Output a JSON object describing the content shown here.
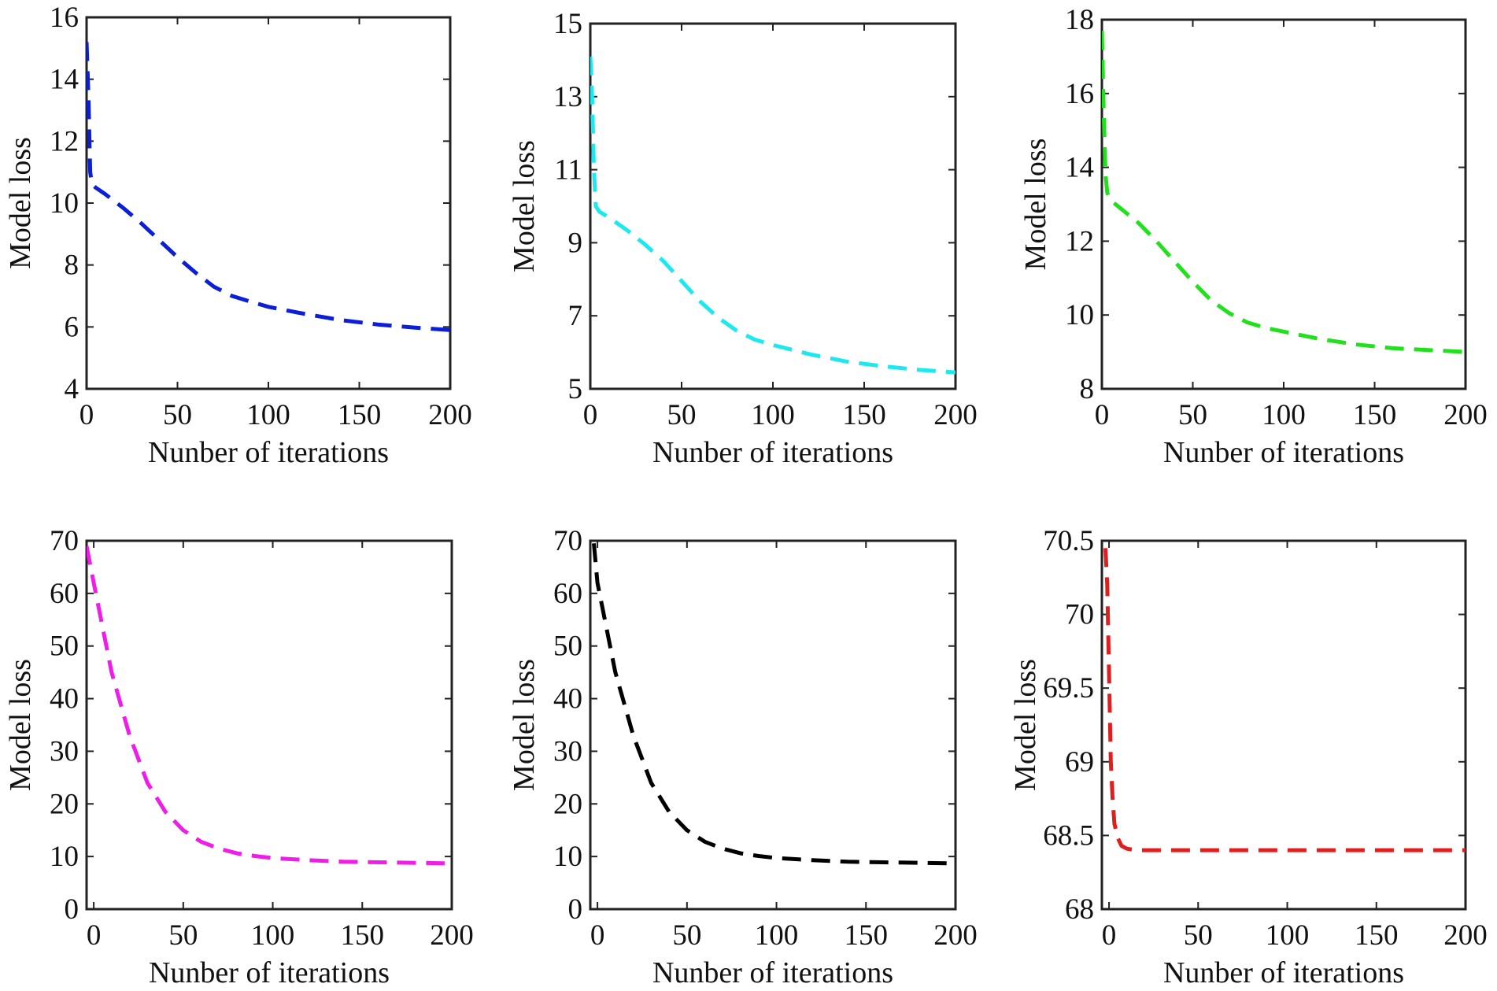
{
  "chart_data": [
    {
      "type": "line",
      "title": "",
      "xlabel": "Nunber of iterations",
      "ylabel": "Model loss",
      "xlim": [
        0,
        200
      ],
      "ylim": [
        4,
        16
      ],
      "xticks": [
        0,
        50,
        100,
        150,
        200
      ],
      "yticks": [
        4,
        6,
        8,
        10,
        12,
        14,
        16
      ],
      "series": [
        {
          "name": "loss",
          "color": "#0a1fd6",
          "x": [
            0,
            1,
            2,
            3,
            5,
            10,
            20,
            30,
            40,
            50,
            60,
            70,
            80,
            90,
            100,
            120,
            140,
            160,
            180,
            200
          ],
          "y": [
            15.2,
            13.5,
            11.0,
            10.6,
            10.5,
            10.3,
            9.85,
            9.35,
            8.8,
            8.25,
            7.75,
            7.3,
            7.0,
            6.82,
            6.65,
            6.42,
            6.22,
            6.08,
            5.98,
            5.9
          ]
        }
      ]
    },
    {
      "type": "line",
      "title": "",
      "xlabel": "Nunber of iterations",
      "ylabel": "Model loss",
      "xlim": [
        0,
        200
      ],
      "ylim": [
        5,
        15
      ],
      "xticks": [
        0,
        50,
        100,
        150,
        200
      ],
      "yticks": [
        5,
        7,
        9,
        11,
        13,
        15
      ],
      "series": [
        {
          "name": "loss",
          "color": "#1ee8ef",
          "x": [
            0,
            1,
            2,
            3,
            5,
            10,
            20,
            30,
            40,
            50,
            60,
            70,
            80,
            90,
            100,
            120,
            140,
            160,
            180,
            200
          ],
          "y": [
            14.1,
            13.0,
            11.0,
            10.0,
            9.85,
            9.7,
            9.35,
            8.95,
            8.5,
            7.95,
            7.4,
            6.95,
            6.6,
            6.35,
            6.2,
            5.95,
            5.75,
            5.62,
            5.52,
            5.45
          ]
        }
      ]
    },
    {
      "type": "line",
      "title": "",
      "xlabel": "Nunber of iterations",
      "ylabel": "Model loss",
      "xlim": [
        0,
        200
      ],
      "ylim": [
        8,
        18
      ],
      "xticks": [
        0,
        50,
        100,
        150,
        200
      ],
      "yticks": [
        8,
        10,
        12,
        14,
        16,
        18
      ],
      "series": [
        {
          "name": "loss",
          "color": "#22e01e",
          "x": [
            0,
            1,
            2,
            3,
            5,
            10,
            20,
            30,
            40,
            50,
            60,
            70,
            80,
            90,
            100,
            120,
            140,
            160,
            180,
            200
          ],
          "y": [
            17.7,
            15.5,
            13.8,
            13.3,
            13.1,
            12.9,
            12.5,
            12.0,
            11.45,
            10.9,
            10.4,
            10.05,
            9.8,
            9.65,
            9.55,
            9.35,
            9.2,
            9.1,
            9.05,
            9.0
          ]
        }
      ]
    },
    {
      "type": "line",
      "title": "",
      "xlabel": "Nunber of iterations",
      "ylabel": "Model loss",
      "xlim": [
        -4,
        200
      ],
      "ylim": [
        0,
        70
      ],
      "xticks": [
        0,
        50,
        100,
        150,
        200
      ],
      "yticks": [
        0,
        10,
        20,
        30,
        40,
        50,
        60,
        70
      ],
      "series": [
        {
          "name": "loss",
          "color": "#ee1ee8",
          "x": [
            -4,
            0,
            10,
            20,
            30,
            40,
            50,
            60,
            70,
            80,
            90,
            100,
            120,
            140,
            160,
            180,
            196
          ],
          "y": [
            69.0,
            62.0,
            45.0,
            33.0,
            24.0,
            18.5,
            15.0,
            12.8,
            11.5,
            10.6,
            10.1,
            9.7,
            9.3,
            9.0,
            8.9,
            8.8,
            8.7
          ]
        }
      ]
    },
    {
      "type": "line",
      "title": "",
      "xlabel": "Nunber of iterations",
      "ylabel": "Model loss",
      "xlim": [
        -4,
        200
      ],
      "ylim": [
        0,
        70
      ],
      "xticks": [
        0,
        50,
        100,
        150,
        200
      ],
      "yticks": [
        0,
        10,
        20,
        30,
        40,
        50,
        60,
        70
      ],
      "series": [
        {
          "name": "loss",
          "color": "#000000",
          "x": [
            -2,
            0,
            10,
            20,
            30,
            40,
            50,
            60,
            70,
            80,
            90,
            100,
            120,
            140,
            160,
            180,
            196
          ],
          "y": [
            69.5,
            62.0,
            45.0,
            33.0,
            24.0,
            18.5,
            15.0,
            12.8,
            11.5,
            10.6,
            10.1,
            9.7,
            9.3,
            9.0,
            8.9,
            8.8,
            8.7
          ]
        }
      ]
    },
    {
      "type": "line",
      "title": "",
      "xlabel": "Nunber of iterations",
      "ylabel": "Model loss",
      "xlim": [
        -4,
        200
      ],
      "ylim": [
        68,
        70.5
      ],
      "xticks": [
        0,
        50,
        100,
        150,
        200
      ],
      "yticks": [
        68,
        68.5,
        69,
        69.5,
        70,
        70.5
      ],
      "ytick_labels": [
        "68",
        "68.5",
        "69",
        "69.5",
        "70",
        "70.5"
      ],
      "series": [
        {
          "name": "loss",
          "color": "#e01e1e",
          "x": [
            -2,
            -1,
            0,
            1,
            2,
            3,
            5,
            7,
            10,
            15,
            20,
            50,
            100,
            150,
            200
          ],
          "y": [
            70.45,
            70.2,
            69.6,
            69.0,
            68.75,
            68.58,
            68.48,
            68.43,
            68.41,
            68.4,
            68.4,
            68.4,
            68.4,
            68.4,
            68.4
          ]
        }
      ]
    }
  ]
}
